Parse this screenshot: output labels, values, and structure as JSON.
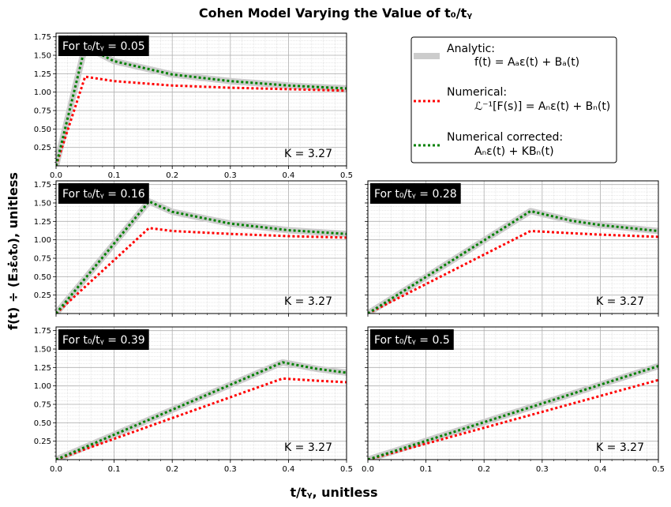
{
  "figure": {
    "title": "Cohen Model Varying the Value of t₀/tᵧ",
    "xlabel": "t/tᵧ, unitless",
    "ylabel": "f(t) ÷ (E₃ε̇₀t₀), unitless"
  },
  "legend": {
    "placement": "top-right",
    "entries": [
      {
        "label": "Analytic:",
        "formula": "f(t) = Aₐε(t) + Bₐ(t)",
        "color": "#cccccc",
        "style": "solid-thick"
      },
      {
        "label": "Numerical:",
        "formula": "ℒ⁻¹[F(s)] = Aₙε(t) + Bₙ(t)",
        "color": "#ff0000",
        "style": "dotted"
      },
      {
        "label": "Numerical corrected:",
        "formula": "Aₙε(t) + KBₙ(t)",
        "color": "#008000",
        "style": "dotted"
      }
    ]
  },
  "colors": {
    "analytic": "#cccccc",
    "numerical": "#ff0000",
    "corrected": "#008000",
    "label_box": "#000000"
  },
  "chart_data": [
    {
      "type": "line",
      "label": "For t₀/tᵧ = 0.05",
      "k_label": "K = 3.27",
      "xlim": [
        0,
        0.5
      ],
      "ylim": [
        0,
        1.8
      ],
      "grid": true,
      "x_ticks": [
        "0.0",
        "0.1",
        "0.2",
        "0.3",
        "0.4",
        "0.5"
      ],
      "y_ticks": [
        "0.25",
        "0.50",
        "0.75",
        "1.00",
        "1.25",
        "1.50",
        "1.75"
      ],
      "series": [
        {
          "x": [
            0,
            0.05,
            0.1,
            0.2,
            0.3,
            0.4,
            0.5
          ],
          "y": [
            0,
            1.62,
            1.42,
            1.24,
            1.15,
            1.09,
            1.05
          ]
        },
        {
          "x": [
            0,
            0.05,
            0.1,
            0.2,
            0.3,
            0.4,
            0.5
          ],
          "y": [
            0,
            1.21,
            1.15,
            1.09,
            1.06,
            1.04,
            1.02
          ]
        },
        {
          "x": [
            0,
            0.05,
            0.1,
            0.2,
            0.3,
            0.4,
            0.5
          ],
          "y": [
            0,
            1.62,
            1.42,
            1.24,
            1.15,
            1.09,
            1.05
          ]
        }
      ]
    },
    {
      "type": "line",
      "label": "For t₀/tᵧ = 0.16",
      "k_label": "K = 3.27",
      "xlim": [
        0,
        0.5
      ],
      "ylim": [
        0,
        1.8
      ],
      "grid": true,
      "x_ticks": [],
      "y_ticks": [
        "0.25",
        "0.50",
        "0.75",
        "1.00",
        "1.25",
        "1.50",
        "1.75"
      ],
      "series": [
        {
          "x": [
            0,
            0.16,
            0.2,
            0.3,
            0.4,
            0.5
          ],
          "y": [
            0,
            1.52,
            1.38,
            1.22,
            1.13,
            1.08
          ]
        },
        {
          "x": [
            0,
            0.16,
            0.2,
            0.3,
            0.4,
            0.5
          ],
          "y": [
            0,
            1.16,
            1.12,
            1.08,
            1.05,
            1.03
          ]
        },
        {
          "x": [
            0,
            0.16,
            0.2,
            0.3,
            0.4,
            0.5
          ],
          "y": [
            0,
            1.52,
            1.38,
            1.22,
            1.13,
            1.08
          ]
        }
      ]
    },
    {
      "type": "line",
      "label": "For t₀/tᵧ = 0.28",
      "k_label": "K = 3.27",
      "xlim": [
        0,
        0.5
      ],
      "ylim": [
        0,
        1.8
      ],
      "grid": true,
      "x_ticks": [],
      "y_ticks": [],
      "series": [
        {
          "x": [
            0,
            0.28,
            0.35,
            0.4,
            0.5
          ],
          "y": [
            0,
            1.39,
            1.26,
            1.2,
            1.12
          ]
        },
        {
          "x": [
            0,
            0.28,
            0.35,
            0.4,
            0.5
          ],
          "y": [
            0,
            1.12,
            1.09,
            1.07,
            1.04
          ]
        },
        {
          "x": [
            0,
            0.28,
            0.35,
            0.4,
            0.5
          ],
          "y": [
            0,
            1.39,
            1.26,
            1.2,
            1.12
          ]
        }
      ]
    },
    {
      "type": "line",
      "label": "For t₀/tᵧ = 0.39",
      "k_label": "K = 3.27",
      "xlim": [
        0,
        0.5
      ],
      "ylim": [
        0,
        1.8
      ],
      "grid": true,
      "x_ticks": [
        "0.0",
        "0.1",
        "0.2",
        "0.3",
        "0.4",
        "0.5"
      ],
      "y_ticks": [
        "0.25",
        "0.50",
        "0.75",
        "1.00",
        "1.25",
        "1.50",
        "1.75"
      ],
      "series": [
        {
          "x": [
            0,
            0.39,
            0.45,
            0.5
          ],
          "y": [
            0,
            1.32,
            1.23,
            1.18
          ]
        },
        {
          "x": [
            0,
            0.39,
            0.45,
            0.5
          ],
          "y": [
            0,
            1.1,
            1.07,
            1.05
          ]
        },
        {
          "x": [
            0,
            0.39,
            0.45,
            0.5
          ],
          "y": [
            0,
            1.32,
            1.23,
            1.18
          ]
        }
      ]
    },
    {
      "type": "line",
      "label": "For t₀/tᵧ = 0.5",
      "k_label": "K = 3.27",
      "xlim": [
        0,
        0.5
      ],
      "ylim": [
        0,
        1.8
      ],
      "grid": true,
      "x_ticks": [
        "0.0",
        "0.1",
        "0.2",
        "0.3",
        "0.4",
        "0.5"
      ],
      "y_ticks": [],
      "series": [
        {
          "x": [
            0,
            0.5
          ],
          "y": [
            0,
            1.27
          ]
        },
        {
          "x": [
            0,
            0.5
          ],
          "y": [
            0,
            1.08
          ]
        },
        {
          "x": [
            0,
            0.5
          ],
          "y": [
            0,
            1.27
          ]
        }
      ]
    }
  ]
}
